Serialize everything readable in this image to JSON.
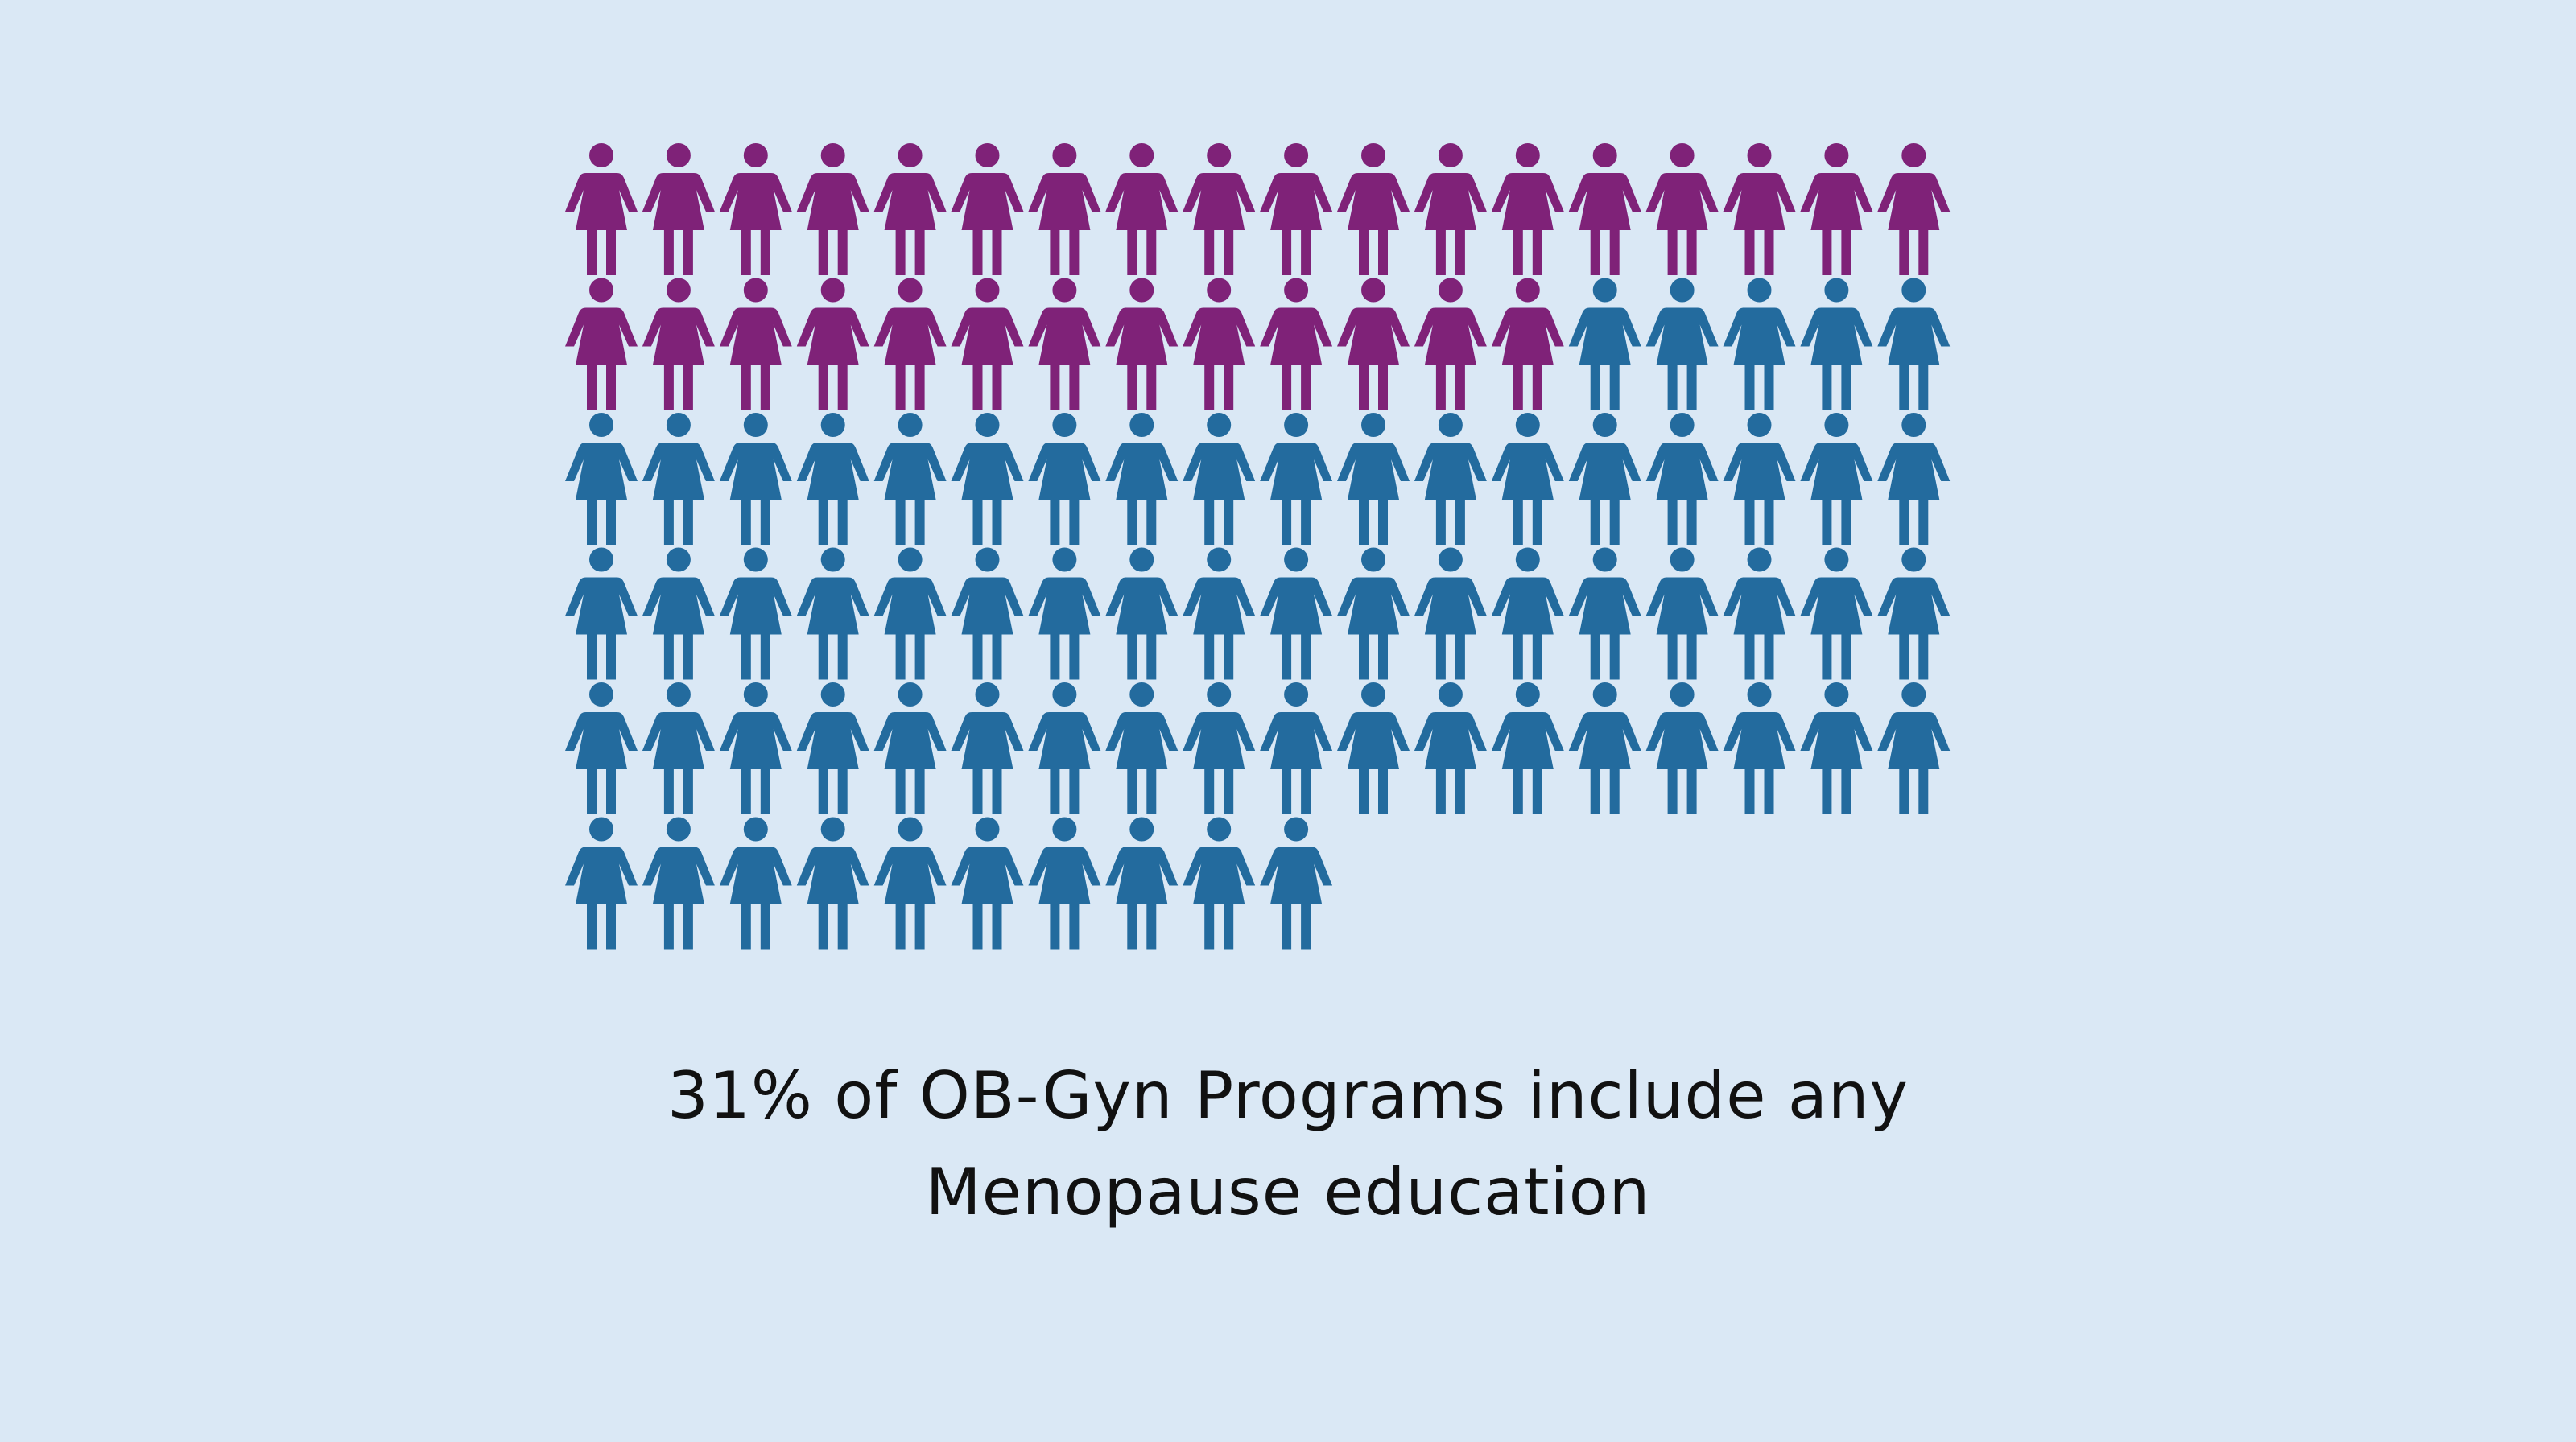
{
  "colors": {
    "background": "#dae8f5",
    "highlight": "#7f2278",
    "base": "#236b9e",
    "text": "#111111"
  },
  "icon": "woman-figure-icon",
  "caption": {
    "line1": "31% of OB-Gyn Programs include any",
    "line2": "Menopause education"
  },
  "chart_data": {
    "type": "pictogram",
    "total_icons": 100,
    "highlighted_icons": 31,
    "highlighted_percent": 31,
    "icons_per_row": 18,
    "fill_order": "left-to-right, top-to-bottom",
    "annotation": "31% of OB-Gyn Programs include any Menopause education"
  }
}
